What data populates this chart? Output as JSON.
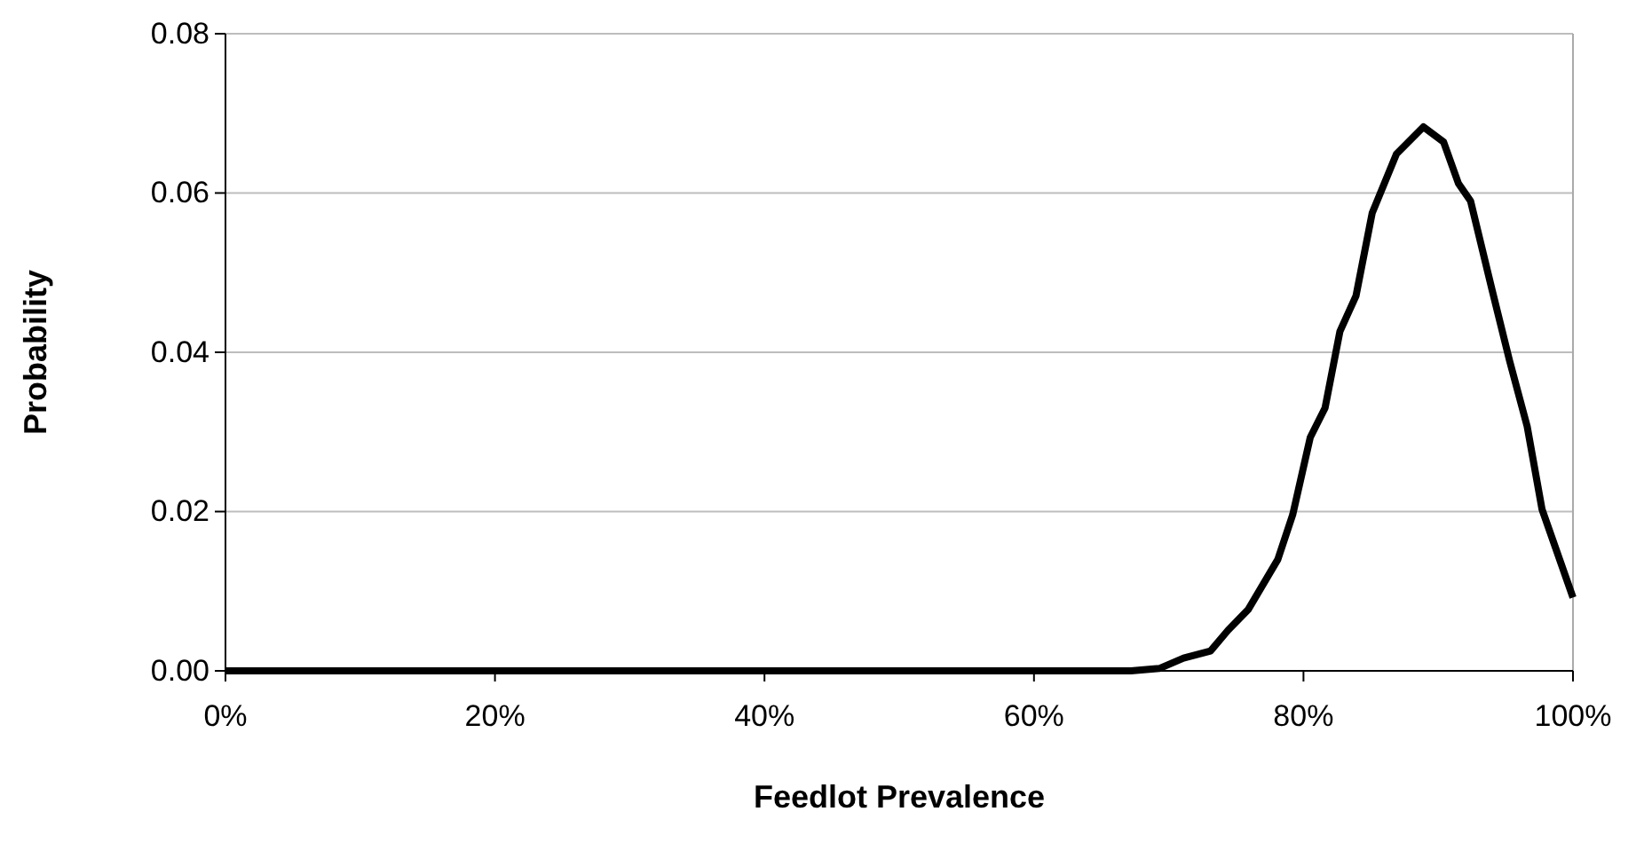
{
  "chart_data": {
    "type": "line",
    "xlabel": "Feedlot Prevalence",
    "ylabel": "Probability",
    "x": [
      0,
      10,
      20,
      30,
      40,
      50,
      60,
      65,
      67.2,
      69.3,
      71.1,
      73.1,
      74.4,
      75.9,
      78.1,
      79.2,
      80.5,
      81.6,
      82.7,
      83.9,
      85.1,
      86.9,
      88.9,
      90.4,
      91.5,
      92.4,
      94.0,
      95.3,
      96.6,
      97.7,
      100
    ],
    "series": [
      {
        "color": "#000000",
        "values": [
          0,
          0,
          0,
          0,
          0,
          0,
          0,
          0,
          0,
          0.0003,
          0.0016,
          0.0025,
          0.0051,
          0.0077,
          0.014,
          0.0196,
          0.0293,
          0.033,
          0.0426,
          0.0471,
          0.0575,
          0.0649,
          0.0683,
          0.0664,
          0.0612,
          0.059,
          0.0478,
          0.0389,
          0.0307,
          0.0203,
          0.0092
        ]
      }
    ],
    "xlim": [
      0,
      100
    ],
    "xticks": [
      {
        "value": 0,
        "label": "0%"
      },
      {
        "value": 20,
        "label": "20%"
      },
      {
        "value": 40,
        "label": "40%"
      },
      {
        "value": 60,
        "label": "60%"
      },
      {
        "value": 80,
        "label": "80%"
      },
      {
        "value": 100,
        "label": "100%"
      }
    ],
    "ylim": [
      0,
      0.08
    ],
    "yticks": [
      {
        "value": 0,
        "label": "0.00"
      },
      {
        "value": 0.02,
        "label": "0.02"
      },
      {
        "value": 0.04,
        "label": "0.04"
      },
      {
        "value": 0.06,
        "label": "0.06"
      },
      {
        "value": 0.08,
        "label": "0.08"
      }
    ],
    "grid": "y",
    "marker": "none",
    "line_style": "solid"
  }
}
